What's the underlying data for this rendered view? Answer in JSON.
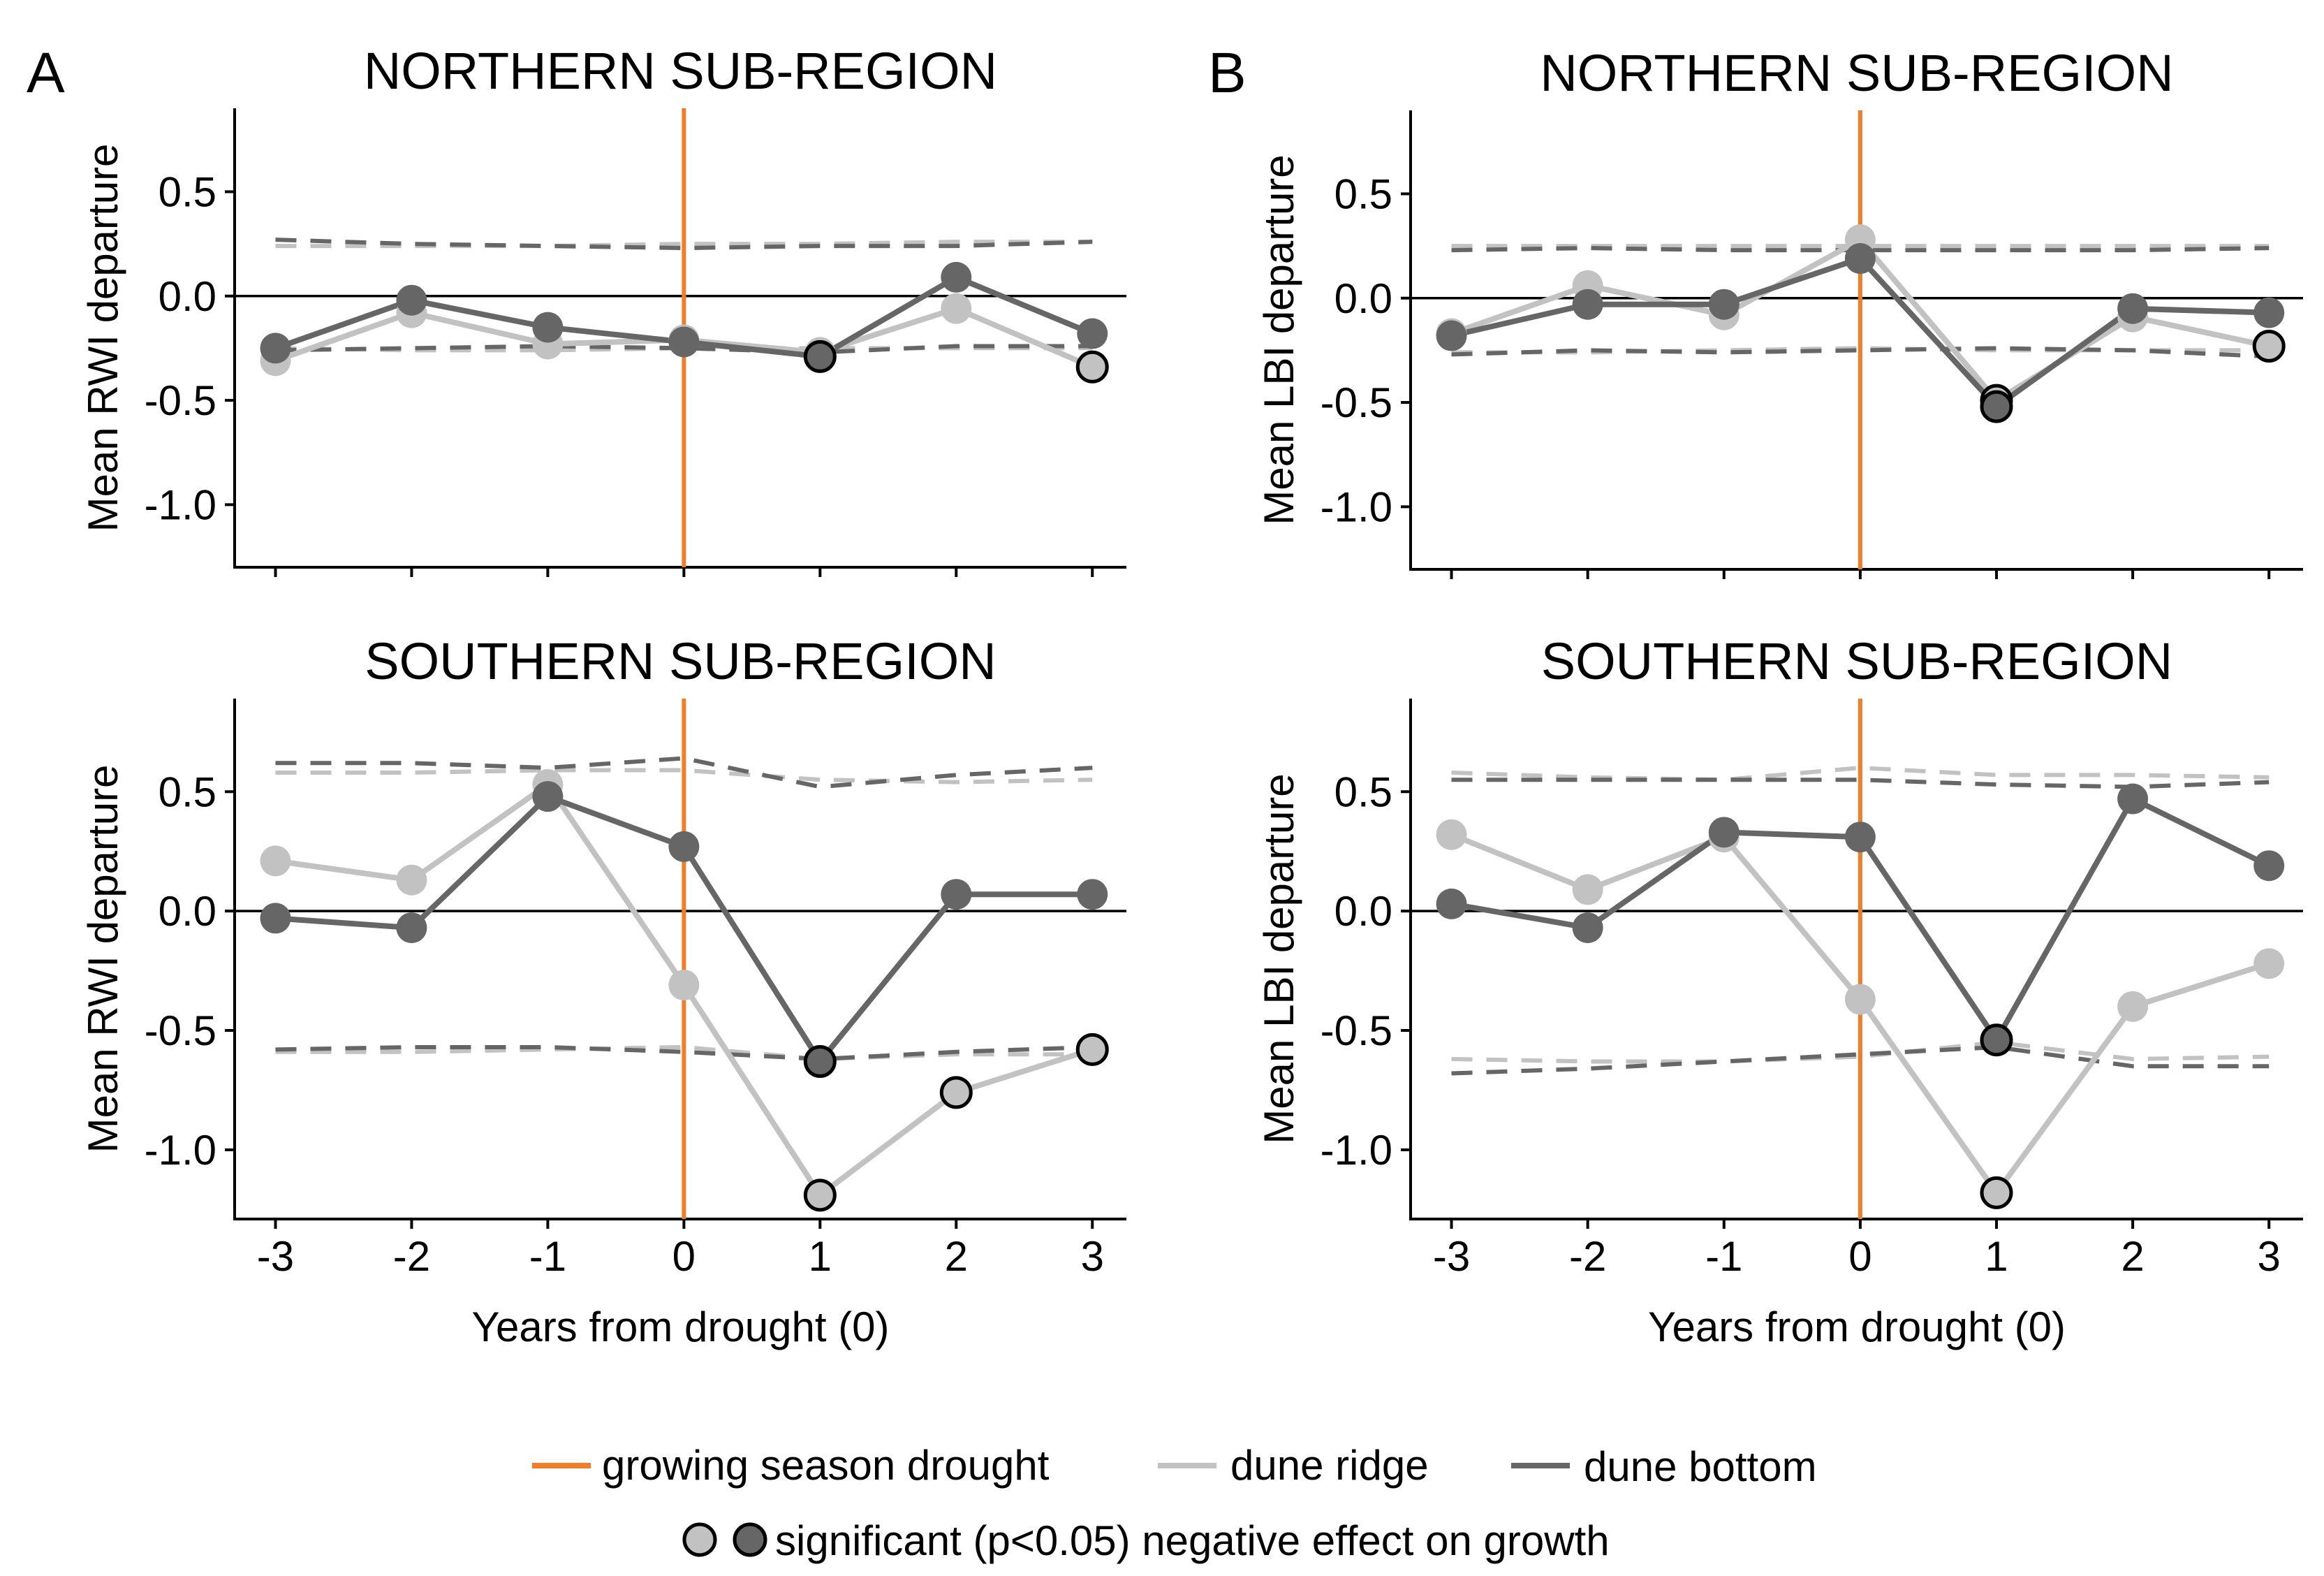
{
  "figure": {
    "x_tick_labels": [
      "-3",
      "-2",
      "-1",
      "0",
      "1",
      "2",
      "3"
    ],
    "legend": {
      "drought_label": "growing season drought",
      "ridge_label": "dune ridge",
      "bottom_label": "dune bottom",
      "significance_label": "significant (p<0.05) negative effect on growth"
    },
    "colors": {
      "drought": "#F07D2A",
      "ridge": "#C2C2C2",
      "bottom": "#666666",
      "zero_line": "#000000",
      "axis": "#000000"
    }
  },
  "chart_data": [
    {
      "type": "line",
      "panel_letter": "A",
      "title": "NORTHERN SUB-REGION",
      "xlabel": "",
      "ylabel": "Mean RWI departure",
      "x": [
        -3,
        -2,
        -1,
        0,
        1,
        2,
        3
      ],
      "xlim": [
        -3.3,
        3.25
      ],
      "ylim": [
        -1.3,
        0.9
      ],
      "yticks": [
        0.5,
        0.0,
        -0.5,
        -1.0
      ],
      "ytick_labels": [
        "0.5",
        "0.0",
        "-0.5",
        "-1.0"
      ],
      "show_x_tick_labels": false,
      "drought_x": 0,
      "series": [
        {
          "name": "dune ridge",
          "values": [
            -0.31,
            -0.08,
            -0.23,
            -0.21,
            -0.27,
            -0.06,
            -0.34
          ],
          "significant": [
            false,
            false,
            false,
            false,
            false,
            false,
            true
          ]
        },
        {
          "name": "dune bottom",
          "values": [
            -0.25,
            -0.02,
            -0.15,
            -0.22,
            -0.29,
            0.09,
            -0.18
          ],
          "significant": [
            false,
            false,
            false,
            false,
            true,
            false,
            false
          ]
        }
      ],
      "thresholds": [
        {
          "name": "dune ridge upper",
          "values": [
            0.24,
            0.24,
            0.24,
            0.25,
            0.25,
            0.26,
            0.26
          ]
        },
        {
          "name": "dune bottom upper",
          "values": [
            0.27,
            0.25,
            0.24,
            0.23,
            0.24,
            0.24,
            0.26
          ]
        },
        {
          "name": "dune ridge lower",
          "values": [
            -0.25,
            -0.26,
            -0.26,
            -0.25,
            -0.25,
            -0.25,
            -0.25
          ]
        },
        {
          "name": "dune bottom lower",
          "values": [
            -0.26,
            -0.25,
            -0.24,
            -0.25,
            -0.27,
            -0.24,
            -0.24
          ]
        }
      ]
    },
    {
      "type": "line",
      "panel_letter": "B",
      "title": "NORTHERN SUB-REGION",
      "xlabel": "",
      "ylabel": "Mean LBI departure",
      "x": [
        -3,
        -2,
        -1,
        0,
        1,
        2,
        3
      ],
      "xlim": [
        -3.3,
        3.25
      ],
      "ylim": [
        -1.3,
        0.9
      ],
      "yticks": [
        0.5,
        0.0,
        -0.5,
        -1.0
      ],
      "ytick_labels": [
        "0.5",
        "0.0",
        "-0.5",
        "-1.0"
      ],
      "show_x_tick_labels": false,
      "drought_x": 0,
      "series": [
        {
          "name": "dune ridge",
          "values": [
            -0.17,
            0.06,
            -0.08,
            0.28,
            -0.49,
            -0.09,
            -0.23
          ],
          "significant": [
            false,
            false,
            false,
            false,
            true,
            false,
            true
          ]
        },
        {
          "name": "dune bottom",
          "values": [
            -0.18,
            -0.03,
            -0.03,
            0.19,
            -0.52,
            -0.05,
            -0.07
          ],
          "significant": [
            false,
            false,
            false,
            false,
            true,
            false,
            false
          ]
        }
      ],
      "thresholds": [
        {
          "name": "dune ridge upper",
          "values": [
            0.25,
            0.25,
            0.25,
            0.25,
            0.25,
            0.25,
            0.25
          ]
        },
        {
          "name": "dune bottom upper",
          "values": [
            0.23,
            0.24,
            0.23,
            0.23,
            0.23,
            0.23,
            0.24
          ]
        },
        {
          "name": "dune ridge lower",
          "values": [
            -0.26,
            -0.26,
            -0.25,
            -0.24,
            -0.25,
            -0.25,
            -0.25
          ]
        },
        {
          "name": "dune bottom lower",
          "values": [
            -0.27,
            -0.25,
            -0.26,
            -0.25,
            -0.24,
            -0.25,
            -0.28
          ]
        }
      ]
    },
    {
      "type": "line",
      "title": "SOUTHERN SUB-REGION",
      "xlabel": "Years from drought (0)",
      "ylabel": "Mean RWI departure",
      "x": [
        -3,
        -2,
        -1,
        0,
        1,
        2,
        3
      ],
      "xlim": [
        -3.3,
        3.25
      ],
      "ylim": [
        -1.29,
        0.89
      ],
      "yticks": [
        0.5,
        0.0,
        -0.5,
        -1.0
      ],
      "ytick_labels": [
        "0.5",
        "0.0",
        "-0.5",
        "-1.0"
      ],
      "show_x_tick_labels": true,
      "drought_x": 0,
      "series": [
        {
          "name": "dune ridge",
          "values": [
            0.21,
            0.13,
            0.53,
            -0.31,
            -1.19,
            -0.76,
            -0.58
          ],
          "significant": [
            false,
            false,
            false,
            false,
            true,
            true,
            true
          ]
        },
        {
          "name": "dune bottom",
          "values": [
            -0.03,
            -0.07,
            0.48,
            0.27,
            -0.63,
            0.07,
            0.07
          ],
          "significant": [
            false,
            false,
            false,
            false,
            true,
            false,
            false
          ]
        }
      ],
      "thresholds": [
        {
          "name": "dune ridge upper",
          "values": [
            0.58,
            0.58,
            0.59,
            0.59,
            0.55,
            0.54,
            0.55
          ]
        },
        {
          "name": "dune bottom upper",
          "values": [
            0.62,
            0.62,
            0.6,
            0.64,
            0.52,
            0.57,
            0.6
          ]
        },
        {
          "name": "dune ridge lower",
          "values": [
            -0.59,
            -0.59,
            -0.58,
            -0.57,
            -0.62,
            -0.6,
            -0.6
          ]
        },
        {
          "name": "dune bottom lower",
          "values": [
            -0.58,
            -0.57,
            -0.57,
            -0.59,
            -0.62,
            -0.59,
            -0.57
          ]
        }
      ]
    },
    {
      "type": "line",
      "title": "SOUTHERN SUB-REGION",
      "xlabel": "Years from drought (0)",
      "ylabel": "Mean LBI departure",
      "x": [
        -3,
        -2,
        -1,
        0,
        1,
        2,
        3
      ],
      "xlim": [
        -3.3,
        3.25
      ],
      "ylim": [
        -1.29,
        0.89
      ],
      "yticks": [
        0.5,
        0.0,
        -0.5,
        -1.0
      ],
      "ytick_labels": [
        "0.5",
        "0.0",
        "-0.5",
        "-1.0"
      ],
      "show_x_tick_labels": true,
      "drought_x": 0,
      "series": [
        {
          "name": "dune ridge",
          "values": [
            0.32,
            0.09,
            0.31,
            -0.37,
            -1.18,
            -0.4,
            -0.22
          ],
          "significant": [
            false,
            false,
            false,
            false,
            true,
            false,
            false
          ]
        },
        {
          "name": "dune bottom",
          "values": [
            0.03,
            -0.07,
            0.33,
            0.31,
            -0.54,
            0.47,
            0.19
          ],
          "significant": [
            false,
            false,
            false,
            false,
            true,
            false,
            false
          ]
        }
      ],
      "thresholds": [
        {
          "name": "dune ridge upper",
          "values": [
            0.58,
            0.56,
            0.55,
            0.6,
            0.57,
            0.57,
            0.56
          ]
        },
        {
          "name": "dune bottom upper",
          "values": [
            0.55,
            0.55,
            0.55,
            0.55,
            0.53,
            0.52,
            0.54
          ]
        },
        {
          "name": "dune ridge lower",
          "values": [
            -0.62,
            -0.63,
            -0.63,
            -0.61,
            -0.55,
            -0.62,
            -0.61
          ]
        },
        {
          "name": "dune bottom lower",
          "values": [
            -0.68,
            -0.66,
            -0.63,
            -0.6,
            -0.57,
            -0.65,
            -0.65
          ]
        }
      ]
    }
  ]
}
